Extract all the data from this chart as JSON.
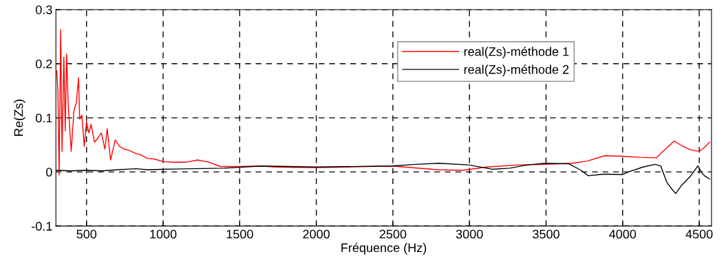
{
  "chart_data": {
    "type": "line",
    "xlabel": "Fréquence (Hz)",
    "ylabel": "Re(Zs)",
    "xlim": [
      300,
      4580
    ],
    "ylim": [
      -0.1,
      0.3
    ],
    "xticks": [
      500,
      1000,
      1500,
      2000,
      2500,
      3000,
      3500,
      4000,
      4500
    ],
    "yticks": [
      -0.1,
      0,
      0.1,
      0.2,
      0.3
    ],
    "grid": true,
    "legend": "top right",
    "line_style": "solid",
    "marker": "none",
    "series": [
      {
        "name": "real(Zs)-méthode 1",
        "color": "#ff0000",
        "x": [
          306,
          313,
          321,
          331,
          340,
          352,
          361,
          370,
          380,
          400,
          418,
          433,
          448,
          455,
          470,
          485,
          500,
          515,
          530,
          552,
          575,
          597,
          620,
          635,
          657,
          687,
          717,
          747,
          777,
          822,
          851,
          896,
          941,
          1001,
          1075,
          1150,
          1225,
          1300,
          1374,
          1494,
          1643,
          1733,
          2000,
          2492,
          2801,
          2956,
          3110,
          3322,
          3496,
          3670,
          3767,
          3882,
          3998,
          4114,
          4220,
          4259,
          4336,
          4384,
          4442,
          4500,
          4529,
          4568
        ],
        "values": [
          0.187,
          0.15,
          -0.006,
          0.263,
          0.038,
          0.212,
          0.076,
          0.218,
          0.127,
          0.038,
          0.114,
          0.127,
          0.174,
          0.098,
          0.105,
          0.047,
          0.093,
          0.072,
          0.088,
          0.055,
          0.063,
          0.072,
          0.042,
          0.08,
          0.022,
          0.059,
          0.047,
          0.042,
          0.04,
          0.034,
          0.032,
          0.025,
          0.024,
          0.019,
          0.018,
          0.018,
          0.022,
          0.018,
          0.01,
          0.01,
          0.011,
          0.009,
          0.008,
          0.011,
          0.004,
          0.003,
          0.009,
          0.013,
          0.014,
          0.016,
          0.02,
          0.03,
          0.029,
          0.027,
          0.026,
          0.037,
          0.057,
          0.049,
          0.041,
          0.038,
          0.044,
          0.055
        ]
      },
      {
        "name": "real(Zs)-méthode 2",
        "color": "#000000",
        "x": [
          303,
          400,
          500,
          600,
          700,
          822,
          900,
          1000,
          1200,
          1400,
          1643,
          2000,
          2492,
          2647,
          2801,
          2994,
          3149,
          3264,
          3380,
          3496,
          3650,
          3728,
          3776,
          3882,
          3998,
          4037,
          4133,
          4210,
          4249,
          4288,
          4317,
          4346,
          4384,
          4442,
          4491,
          4520,
          4539,
          4568
        ],
        "values": [
          0.003,
          0.002,
          0.003,
          0.002,
          0.004,
          0.006,
          0.004,
          0.005,
          0.006,
          0.007,
          0.011,
          0.009,
          0.011,
          0.014,
          0.016,
          0.013,
          0.005,
          0.007,
          0.013,
          0.016,
          0.015,
          0.003,
          -0.007,
          -0.004,
          -0.005,
          0,
          0.009,
          0.014,
          0.011,
          -0.019,
          -0.03,
          -0.04,
          -0.025,
          -0.008,
          0.011,
          -0.003,
          -0.008,
          -0.013
        ]
      }
    ]
  }
}
